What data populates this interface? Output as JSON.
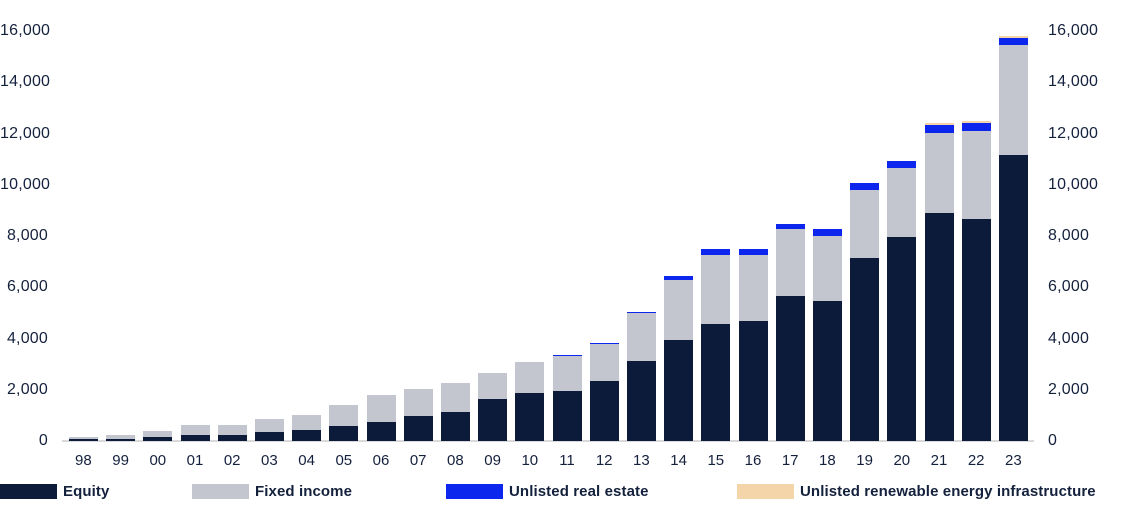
{
  "chart_data": {
    "type": "bar",
    "stacked": true,
    "title": "",
    "xlabel": "",
    "ylabel": "",
    "categories": [
      "98",
      "99",
      "00",
      "01",
      "02",
      "03",
      "04",
      "05",
      "06",
      "07",
      "08",
      "09",
      "10",
      "11",
      "12",
      "13",
      "14",
      "15",
      "16",
      "17",
      "18",
      "19",
      "20",
      "21",
      "22",
      "23"
    ],
    "series": [
      {
        "name": "Equity",
        "color": "#0c1b3a",
        "values": [
          70,
          94,
          152,
          247,
          231,
          361,
          416,
          582,
          726,
          958,
          1129,
          1644,
          1891,
          1945,
          2336,
          3107,
          3940,
          4572,
          4692,
          5653,
          5477,
          7145,
          7946,
          8885,
          8677,
          11175
        ]
      },
      {
        "name": "Fixed income",
        "color": "#c3c6ce",
        "values": [
          102,
          128,
          234,
          367,
          378,
          484,
          600,
          817,
          1058,
          1061,
          1146,
          996,
          1186,
          1356,
          1455,
          1879,
          2350,
          2668,
          2577,
          2616,
          2533,
          2670,
          2695,
          3135,
          3418,
          4270
        ]
      },
      {
        "name": "Unlisted real estate",
        "color": "#0c26ee",
        "values": [
          0,
          0,
          0,
          0,
          0,
          0,
          0,
          0,
          0,
          0,
          0,
          0,
          0,
          11,
          25,
          52,
          141,
          235,
          242,
          219,
          246,
          273,
          273,
          306,
          330,
          300
        ]
      },
      {
        "name": "Unlisted renewable energy infrastructure",
        "color": "#f4d5aa",
        "values": [
          0,
          0,
          0,
          0,
          0,
          0,
          0,
          0,
          0,
          0,
          0,
          0,
          0,
          0,
          0,
          0,
          0,
          0,
          0,
          0,
          0,
          0,
          0,
          14,
          12,
          12
        ]
      }
    ],
    "ylim": [
      0,
      16000
    ],
    "y_ticks": [
      "0",
      "2,000",
      "4,000",
      "6,000",
      "8,000",
      "10,000",
      "12,000",
      "14,000",
      "16,000"
    ],
    "grid": false,
    "legend_position": "bottom",
    "dual_y_axis_labels": true
  }
}
